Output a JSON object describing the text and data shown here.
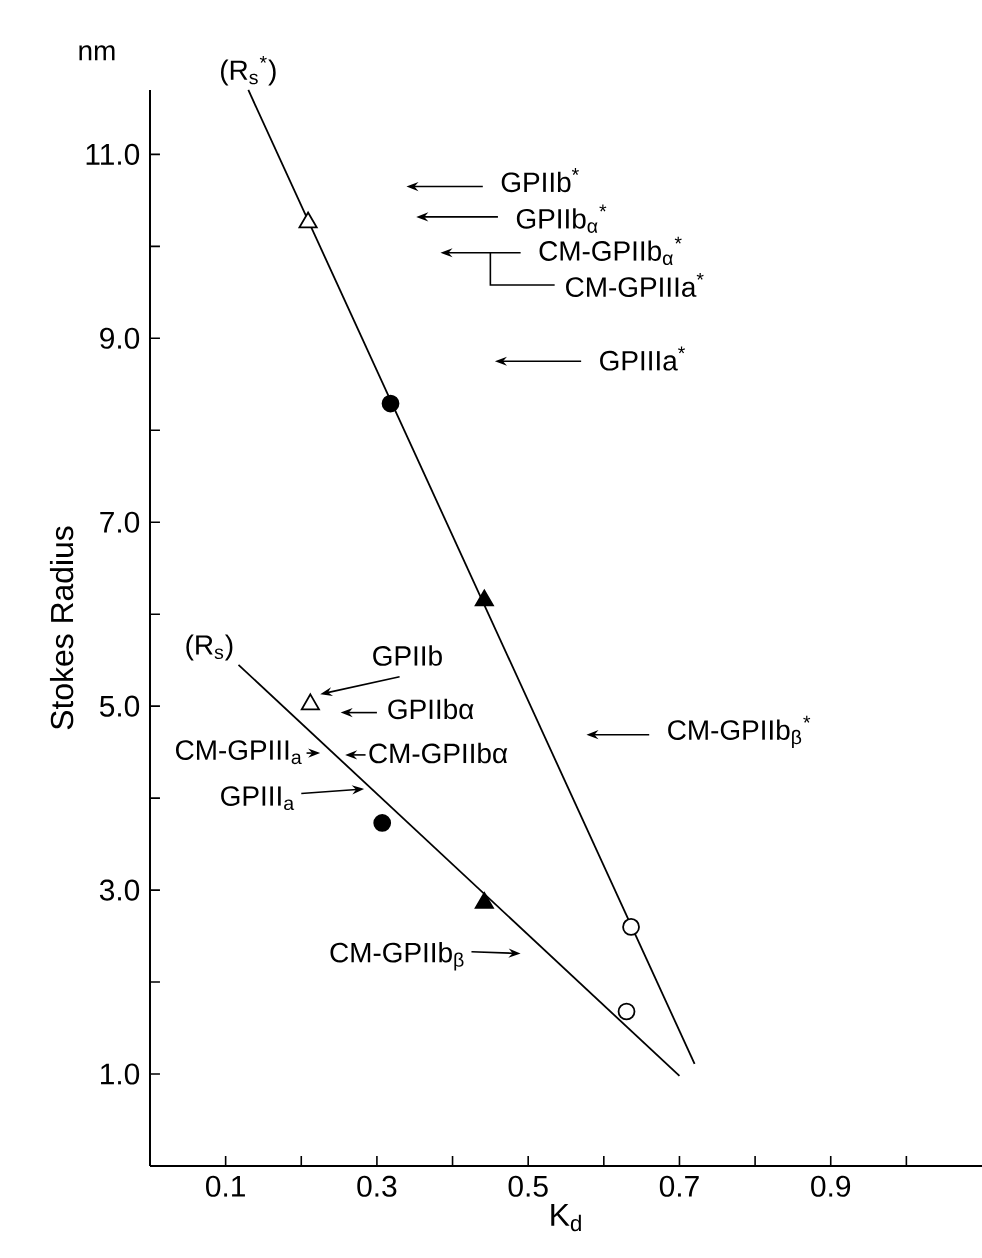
{
  "chart_data": {
    "type": "scatter",
    "xlabel": "K$_{d}$",
    "ylabel": "Stokes Radius",
    "xlim": [
      0,
      1.1
    ],
    "ylim": [
      0,
      11.7
    ],
    "xticks": [
      0.1,
      {
        "value": 0.2,
        "label": null
      },
      0.3,
      {
        "value": 0.4,
        "label": null
      },
      0.5,
      {
        "value": 0.6,
        "label": null
      },
      0.7,
      {
        "value": 0.8,
        "label": null
      },
      0.9,
      {
        "value": 1.0,
        "label": null
      }
    ],
    "yticks": [
      {
        "value": 1,
        "label": "1.0"
      },
      {
        "value": 2,
        "label": null
      },
      {
        "value": 3,
        "label": "3.0"
      },
      {
        "value": 4,
        "label": null
      },
      {
        "value": 5,
        "label": "5.0"
      },
      {
        "value": 6,
        "label": null
      },
      {
        "value": 7,
        "label": "7.0"
      },
      {
        "value": 8,
        "label": null
      },
      {
        "value": 9,
        "label": "9.0"
      },
      {
        "value": 10,
        "label": null
      },
      {
        "value": 11,
        "label": "11.0"
      }
    ],
    "series": [
      {
        "type": "line",
        "name": "(R$_{s}$$^{*}$)",
        "color": "#000000",
        "marker": "none",
        "x": [
          0.13,
          0.72
        ],
        "values": [
          11.7,
          1.11
        ]
      },
      {
        "type": "line",
        "name": "(R$_{s}$)",
        "color": "#000000",
        "marker": "none",
        "x": [
          0.117,
          0.7
        ],
        "values": [
          5.45,
          0.98
        ]
      },
      {
        "color": "#ffffff",
        "marker": "triangle",
        "x": [
          0.209,
          0.212
        ],
        "values": [
          10.26,
          5.02
        ]
      },
      {
        "color": "#000000",
        "marker": "circle",
        "x": [
          0.318,
          0.307
        ],
        "values": [
          8.29,
          3.73
        ]
      },
      {
        "color": "#000000",
        "marker": "triangle",
        "x": [
          0.442,
          0.442
        ],
        "values": [
          6.15,
          2.86
        ]
      },
      {
        "color": "#ffffff",
        "marker": "circle",
        "x": [
          0.636,
          0.63
        ],
        "values": [
          2.6,
          1.68
        ]
      }
    ],
    "annotations": [
      "GPIIb$^{*}$",
      "GPIIb$_{α}$$^{*}$",
      "CM-GPIIb$_{α}$$^{*}$",
      "CM-GPIIIa$^{*}$",
      "GPIIIa$^{*}$",
      "CM-GPIIb$_{β}$$^{*}$",
      "GPIIb",
      "GPIIbα",
      "CM-GPIII$_{a}$",
      "CM-GPIIbα",
      "GPIII$_{a}$",
      "CM-GPIIb$_{β}$",
      "nm"
    ]
  }
}
